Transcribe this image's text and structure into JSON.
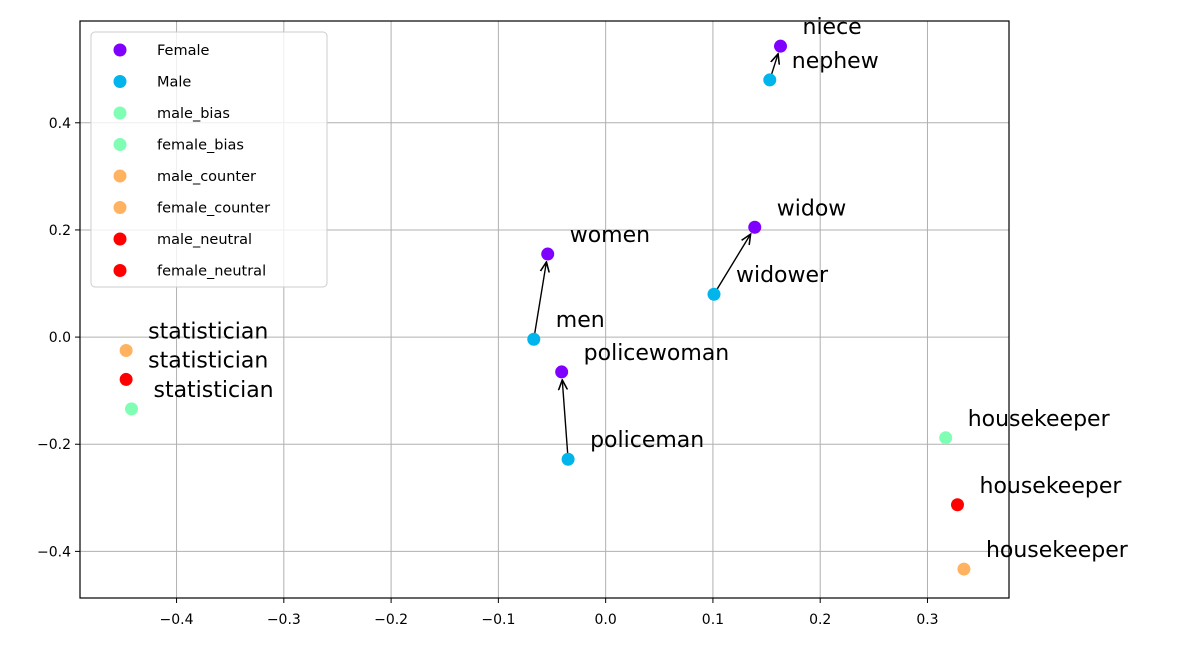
{
  "chart_data": {
    "type": "scatter",
    "xlim": [
      -0.49,
      0.376
    ],
    "ylim": [
      -0.487,
      0.59
    ],
    "xticks": [
      -0.4,
      -0.3,
      -0.2,
      -0.1,
      0.0,
      0.1,
      0.2,
      0.3
    ],
    "xtick_labels": [
      "−0.4",
      "−0.3",
      "−0.2",
      "−0.1",
      "0.0",
      "0.1",
      "0.2",
      "0.3"
    ],
    "yticks": [
      -0.4,
      -0.2,
      0.0,
      0.2,
      0.4
    ],
    "ytick_labels": [
      "−0.4",
      "−0.2",
      "0.0",
      "0.2",
      "0.4"
    ],
    "grid": true,
    "legend_position": "upper-left",
    "series": [
      {
        "name": "Female",
        "color": "#8000ff",
        "points": [
          {
            "x": 0.163,
            "y": 0.543,
            "label": "niece"
          },
          {
            "x": 0.139,
            "y": 0.205,
            "label": "widow"
          },
          {
            "x": -0.054,
            "y": 0.155,
            "label": "women"
          },
          {
            "x": -0.041,
            "y": -0.065,
            "label": "policewoman"
          }
        ]
      },
      {
        "name": "Male",
        "color": "#00b5eb",
        "points": [
          {
            "x": 0.153,
            "y": 0.48,
            "label": "nephew"
          },
          {
            "x": 0.101,
            "y": 0.08,
            "label": "widower"
          },
          {
            "x": -0.067,
            "y": -0.004,
            "label": "men"
          },
          {
            "x": -0.035,
            "y": -0.228,
            "label": "policeman"
          }
        ]
      },
      {
        "name": "male_bias",
        "color": "#80ffb4",
        "points": [
          {
            "x": 0.317,
            "y": -0.188,
            "label": "housekeeper"
          }
        ]
      },
      {
        "name": "female_bias",
        "color": "#80ffb4",
        "points": [
          {
            "x": -0.442,
            "y": -0.134,
            "label": "statistician"
          }
        ]
      },
      {
        "name": "male_counter",
        "color": "#ffb360",
        "points": [
          {
            "x": 0.334,
            "y": -0.433,
            "label": "housekeeper"
          }
        ]
      },
      {
        "name": "female_counter",
        "color": "#ffb360",
        "points": [
          {
            "x": -0.447,
            "y": -0.025,
            "label": "statistician"
          }
        ]
      },
      {
        "name": "male_neutral",
        "color": "#ff0000",
        "points": [
          {
            "x": 0.328,
            "y": -0.313,
            "label": "housekeeper"
          }
        ]
      },
      {
        "name": "female_neutral",
        "color": "#ff0000",
        "points": [
          {
            "x": -0.447,
            "y": -0.079,
            "label": "statistician"
          }
        ]
      }
    ],
    "arrows": [
      {
        "from": [
          0.153,
          0.48
        ],
        "to": [
          0.163,
          0.543
        ]
      },
      {
        "from": [
          0.101,
          0.08
        ],
        "to": [
          0.139,
          0.205
        ]
      },
      {
        "from": [
          -0.067,
          -0.004
        ],
        "to": [
          -0.054,
          0.155
        ]
      },
      {
        "from": [
          -0.035,
          -0.228
        ],
        "to": [
          -0.041,
          -0.065
        ]
      }
    ]
  }
}
